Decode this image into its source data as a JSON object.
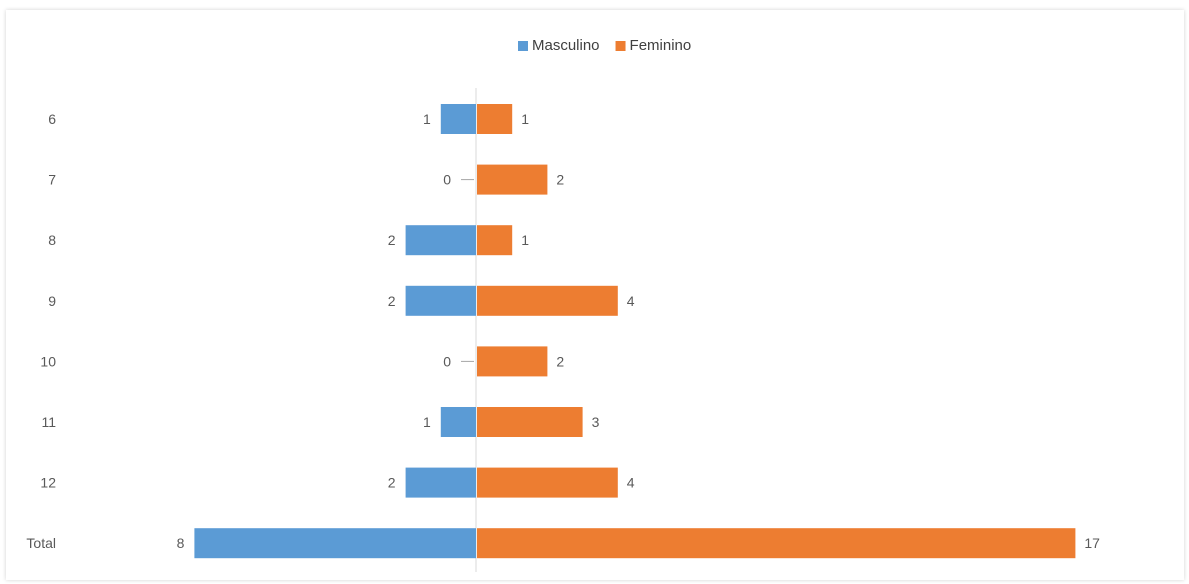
{
  "chart_data": {
    "type": "bar",
    "orientation": "horizontal",
    "categories": [
      "6",
      "7",
      "8",
      "9",
      "10",
      "11",
      "12",
      "Total"
    ],
    "series": [
      {
        "name": "Masculino",
        "values": [
          1,
          0,
          2,
          2,
          0,
          1,
          2,
          8
        ],
        "color": "#5B9BD5",
        "direction": "left"
      },
      {
        "name": "Feminino",
        "values": [
          1,
          2,
          1,
          4,
          2,
          3,
          4,
          17
        ],
        "color": "#ED7D31",
        "direction": "right"
      }
    ],
    "title": "",
    "xlabel": "",
    "ylabel": "",
    "legend_position": "top",
    "data_labels": true,
    "grid": false,
    "xlim": [
      -8,
      17
    ]
  }
}
